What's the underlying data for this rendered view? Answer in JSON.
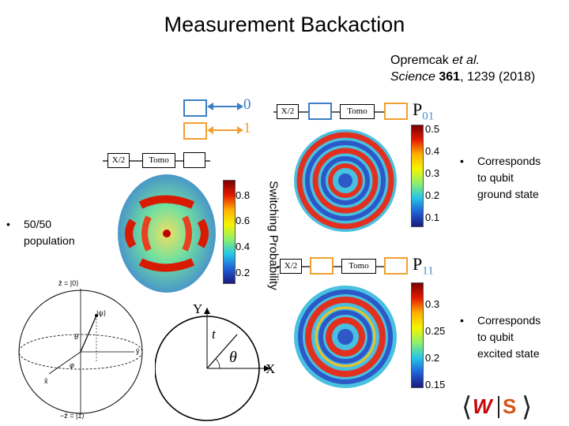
{
  "slide": {
    "title": "Measurement Backaction",
    "citation": {
      "authors": "Opremcak ",
      "etal": "et al.",
      "journal": "Science ",
      "volume": "361",
      "rest": ", 1239 (2018)"
    }
  },
  "legend": {
    "blue_value": "0",
    "orange_value": "1"
  },
  "left_panel": {
    "circuit": {
      "gate": "X/2",
      "tomo": "Tomo"
    },
    "colorbar_ticks": [
      "0.8",
      "0.6",
      "0.4",
      "0.2"
    ],
    "colorbar_label": "Switching Probability",
    "bullet": [
      "50/50",
      "population"
    ]
  },
  "top_right": {
    "circuit": {
      "gate": "X/2",
      "tomo": "Tomo"
    },
    "label_main": "P",
    "label_sub": "01",
    "colorbar_ticks": [
      "0.5",
      "0.4",
      "0.3",
      "0.2",
      "0.1"
    ],
    "bullet": [
      "Corresponds",
      "to qubit",
      "ground state"
    ]
  },
  "bottom_right": {
    "circuit": {
      "gate": "X/2",
      "tomo": "Tomo"
    },
    "label_main": "P",
    "label_sub": "11",
    "colorbar_ticks": [
      "0.3",
      "0.25",
      "0.2",
      "0.15"
    ],
    "bullet": [
      "Corresponds",
      "to qubit",
      "excited state"
    ]
  },
  "bloch": {
    "top": "ẑ = |0⟩",
    "bottom": "−ẑ = |1⟩",
    "psi": "|ψ⟩",
    "theta": "θ",
    "phi": "φ",
    "x": "x̂",
    "y": "ŷ"
  },
  "axes_diagram": {
    "y": "Y",
    "x": "X",
    "t": "t",
    "theta": "θ"
  },
  "logo": {
    "w": "W",
    "s": "S"
  },
  "colors": {
    "blue": "#3b7fc4",
    "orange": "#f0a030"
  }
}
